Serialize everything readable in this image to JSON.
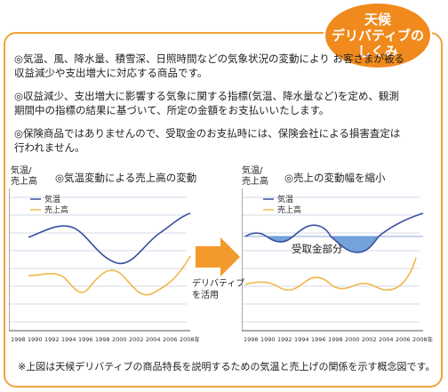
{
  "badge": {
    "line1": "天候",
    "line2": "デリバティブの",
    "line3": "しくみ"
  },
  "bullets": [
    "◎気温、風、降水量、積雪深、日照時間などの気象状況の変動により お客さまが被る収益減少や支出増大に対応する商品です。",
    "◎収益減少、支出増大に影響する気象に関する指標(気温、降水量など)を定め、観測期間中の指標の結果に基づいて、所定の金額をお支払いいたします。",
    "◎保険商品ではありませんので、受取金のお支払時には、保険会社による損害査定は行われません。"
  ],
  "left_chart": {
    "title": "◎気温変動による売上高の変動",
    "ylabel_line1": "気温/",
    "ylabel_line2": "売上高",
    "legend": [
      {
        "label": "気温",
        "color": "#3a4f9e"
      },
      {
        "label": "売上高",
        "color": "#f0b84a"
      }
    ],
    "xticks": [
      "1998",
      "1990",
      "1992",
      "1994",
      "1996",
      "1998",
      "2000",
      "2002",
      "2004",
      "2006",
      "2008年"
    ]
  },
  "right_chart": {
    "title": "◎売上の変動幅を縮小",
    "ylabel_line1": "気温/",
    "ylabel_line2": "売上高",
    "legend": [
      {
        "label": "気温",
        "color": "#3a4f9e"
      },
      {
        "label": "売上高",
        "color": "#f0b84a"
      }
    ],
    "annotation": "受取金部分",
    "xticks": [
      "1998",
      "1990",
      "1992",
      "1994",
      "1996",
      "1998",
      "2000",
      "2002",
      "2004",
      "2006",
      "2008年"
    ]
  },
  "arrow": {
    "label_line1": "デリバティブ",
    "label_line2": "を活用"
  },
  "footnote": "※上図は天候デリバティブの商品特長を説明するための気温と売上げの関係を示す概念図です。",
  "colors": {
    "accent": "#f08a1c",
    "border": "#f2a33a",
    "temp": "#3a4f9e",
    "sales": "#f0b84a",
    "fill": "#5b93d4",
    "grid": "#c9cce0"
  }
}
